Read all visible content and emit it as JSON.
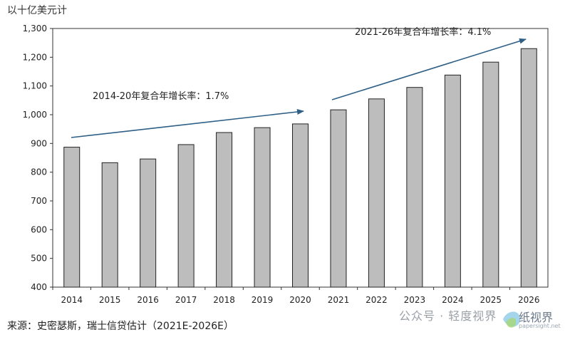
{
  "unit_label": "以十亿美元计",
  "source": "来源：史密瑟斯，瑞士信贷估计（2021E-2026E）",
  "watermark": "公众号 · 轻度视界",
  "watermark_logo": {
    "text": "纸视界",
    "url": "papersight.net"
  },
  "chart_data": {
    "type": "bar",
    "categories": [
      "2014",
      "2015",
      "2016",
      "2017",
      "2018",
      "2019",
      "2020",
      "2021",
      "2022",
      "2023",
      "2024",
      "2025",
      "2026"
    ],
    "values": [
      887,
      833,
      846,
      896,
      938,
      955,
      968,
      1017,
      1055,
      1095,
      1138,
      1183,
      1230
    ],
    "ylim": [
      400,
      1300
    ],
    "yticks": [
      400,
      500,
      600,
      700,
      800,
      900,
      1000,
      1100,
      1200,
      1300
    ],
    "ytick_labels": [
      "400",
      "500",
      "600",
      "700",
      "800",
      "900",
      "1,000",
      "1,100",
      "1,200",
      "1,300"
    ],
    "bar_color": "#bdbdbd",
    "arrow_color": "#2e5f86",
    "annotations": [
      {
        "text": "2014-20年复合年增长率：1.7%"
      },
      {
        "text": "2021-26年复合年增长率：4.1%"
      }
    ],
    "grid": false
  }
}
